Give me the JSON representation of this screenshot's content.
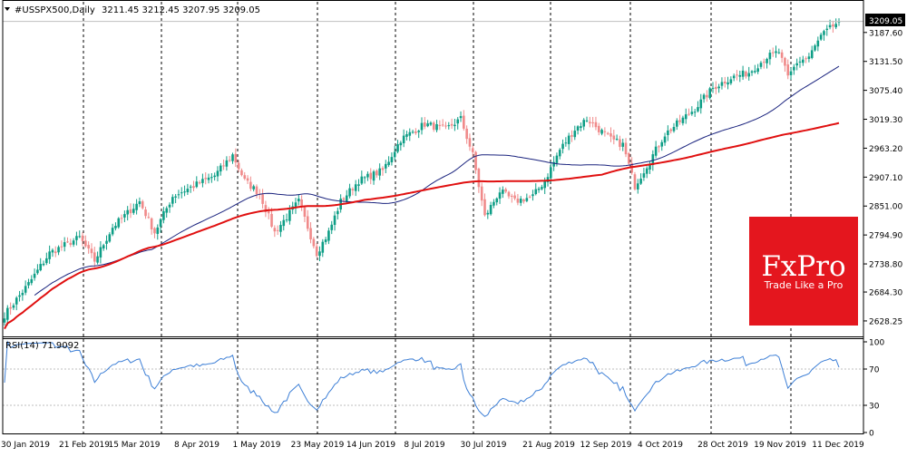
{
  "header": {
    "symbol_label": "#USSPX500,Daily",
    "ohlc_text": "3211.45 3212.45 3207.95 3209.05"
  },
  "price_tag": "3209.05",
  "rsi_label": "RSI(14) 71.9092",
  "brand": {
    "logo_text": "FxPro",
    "slogan": "Trade Like a Pro",
    "color": "#e4161e"
  },
  "colors": {
    "up_candle": "#0e9e86",
    "down_candle": "#f08a8a",
    "ma_fast": "#1a237e",
    "ma_slow": "#e01010",
    "rsi_line": "#3d7fd6"
  },
  "chart_data": [
    {
      "type": "candlestick",
      "title": "#USSPX500,Daily",
      "ylim": [
        2600,
        3240
      ],
      "y_ticks": [
        "3187.60",
        "3131.50",
        "3075.40",
        "3019.30",
        "2963.20",
        "2907.10",
        "2851.00",
        "2794.90",
        "2738.80",
        "2684.30",
        "2628.25"
      ],
      "x_ticks": [
        "30 Jan 2019",
        "21 Feb 2019",
        "15 Mar 2019",
        "8 Apr 2019",
        "1 May 2019",
        "23 May 2019",
        "14 Jun 2019",
        "8 Jul 2019",
        "30 Jul 2019",
        "21 Aug 2019",
        "12 Sep 2019",
        "4 Oct 2019",
        "28 Oct 2019",
        "19 Nov 2019",
        "11 Dec 2019"
      ],
      "last_price": 3209.05,
      "close_anchors": [
        [
          0,
          2640
        ],
        [
          8,
          2700
        ],
        [
          15,
          2760
        ],
        [
          25,
          2790
        ],
        [
          30,
          2745
        ],
        [
          36,
          2810
        ],
        [
          45,
          2860
        ],
        [
          50,
          2800
        ],
        [
          56,
          2870
        ],
        [
          70,
          2910
        ],
        [
          76,
          2950
        ],
        [
          80,
          2900
        ],
        [
          85,
          2875
        ],
        [
          90,
          2800
        ],
        [
          98,
          2860
        ],
        [
          104,
          2760
        ],
        [
          108,
          2800
        ],
        [
          112,
          2860
        ],
        [
          118,
          2900
        ],
        [
          126,
          2920
        ],
        [
          132,
          2980
        ],
        [
          140,
          3010
        ],
        [
          147,
          3000
        ],
        [
          152,
          3020
        ],
        [
          156,
          2950
        ],
        [
          160,
          2830
        ],
        [
          165,
          2880
        ],
        [
          170,
          2860
        ],
        [
          176,
          2870
        ],
        [
          180,
          2900
        ],
        [
          185,
          2960
        ],
        [
          190,
          3000
        ],
        [
          194,
          3020
        ],
        [
          198,
          3000
        ],
        [
          202,
          2980
        ],
        [
          206,
          2970
        ],
        [
          210,
          2890
        ],
        [
          214,
          2930
        ],
        [
          220,
          2990
        ],
        [
          226,
          3020
        ],
        [
          230,
          3040
        ],
        [
          236,
          3080
        ],
        [
          242,
          3100
        ],
        [
          248,
          3110
        ],
        [
          254,
          3140
        ],
        [
          258,
          3150
        ],
        [
          261,
          3100
        ],
        [
          264,
          3130
        ],
        [
          268,
          3140
        ],
        [
          272,
          3180
        ],
        [
          276,
          3200
        ],
        [
          278,
          3209
        ]
      ],
      "series": [
        {
          "kind": "moving-average",
          "fast": true
        },
        {
          "kind": "moving-average",
          "fast": false
        }
      ]
    },
    {
      "type": "line",
      "title": "RSI(14) 71.9092",
      "ylim": [
        0,
        100
      ],
      "y_ticks": [
        "100",
        "70",
        "30",
        "0"
      ],
      "levels": [
        70,
        30
      ],
      "last_value": 71.9092
    }
  ]
}
